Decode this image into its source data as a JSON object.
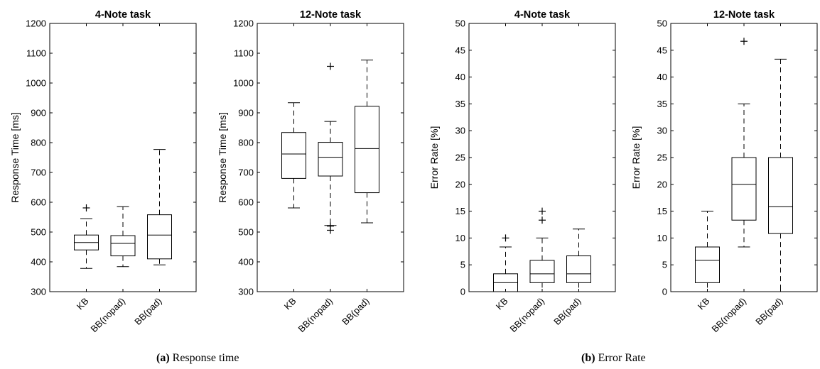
{
  "chart_data": [
    {
      "type": "box",
      "title": "4-Note task",
      "ylabel": "Response Time [ms]",
      "ylim": [
        300,
        1200
      ],
      "yticks": [
        300,
        400,
        500,
        600,
        700,
        800,
        900,
        1000,
        1100,
        1200
      ],
      "categories": [
        "KB",
        "BB(nopad)",
        "BB(pad)"
      ],
      "boxes": [
        {
          "whisker_low": 378,
          "q1": 440,
          "median": 465,
          "q3": 490,
          "whisker_high": 545,
          "outliers": [
            581
          ]
        },
        {
          "whisker_low": 384,
          "q1": 420,
          "median": 462,
          "q3": 488,
          "whisker_high": 585,
          "outliers": []
        },
        {
          "whisker_low": 390,
          "q1": 410,
          "median": 490,
          "q3": 558,
          "whisker_high": 777,
          "outliers": []
        }
      ]
    },
    {
      "type": "box",
      "title": "12-Note task",
      "ylabel": "Response Time [ms]",
      "ylim": [
        300,
        1200
      ],
      "yticks": [
        300,
        400,
        500,
        600,
        700,
        800,
        900,
        1000,
        1100,
        1200
      ],
      "categories": [
        "KB",
        "BB(nopad)",
        "BB(pad)"
      ],
      "boxes": [
        {
          "whisker_low": 581,
          "q1": 680,
          "median": 762,
          "q3": 834,
          "whisker_high": 934,
          "outliers": []
        },
        {
          "whisker_low": 522,
          "q1": 688,
          "median": 751,
          "q3": 801,
          "whisker_high": 871,
          "outliers": [
            1056,
            520,
            506
          ]
        },
        {
          "whisker_low": 531,
          "q1": 632,
          "median": 780,
          "q3": 922,
          "whisker_high": 1077,
          "outliers": []
        }
      ]
    },
    {
      "type": "box",
      "title": "4-Note task",
      "ylabel": "Error Rate [%]",
      "ylim": [
        0,
        50
      ],
      "yticks": [
        0,
        5,
        10,
        15,
        20,
        25,
        30,
        35,
        40,
        45,
        50
      ],
      "categories": [
        "KB",
        "BB(nopad)",
        "BB(pad)"
      ],
      "boxes": [
        {
          "whisker_low": 0,
          "q1": 0,
          "median": 1.67,
          "q3": 3.33,
          "whisker_high": 8.33,
          "outliers": [
            10
          ]
        },
        {
          "whisker_low": 0,
          "q1": 1.67,
          "median": 3.33,
          "q3": 5.83,
          "whisker_high": 10,
          "outliers": [
            13.33,
            15
          ]
        },
        {
          "whisker_low": 0,
          "q1": 1.67,
          "median": 3.33,
          "q3": 6.67,
          "whisker_high": 11.67,
          "outliers": []
        }
      ]
    },
    {
      "type": "box",
      "title": "12-Note task",
      "ylabel": "Error Rate [%]",
      "ylim": [
        0,
        50
      ],
      "yticks": [
        0,
        5,
        10,
        15,
        20,
        25,
        30,
        35,
        40,
        45,
        50
      ],
      "categories": [
        "KB",
        "BB(nopad)",
        "BB(pad)"
      ],
      "boxes": [
        {
          "whisker_low": 0,
          "q1": 1.67,
          "median": 5.83,
          "q3": 8.33,
          "whisker_high": 15,
          "outliers": []
        },
        {
          "whisker_low": 8.33,
          "q1": 13.33,
          "median": 20,
          "q3": 25,
          "whisker_high": 35,
          "outliers": [
            46.67
          ]
        },
        {
          "whisker_low": 0,
          "q1": 10.83,
          "median": 15.83,
          "q3": 25,
          "whisker_high": 43.33,
          "outliers": []
        }
      ]
    }
  ],
  "captions": {
    "a": {
      "label": "(a)",
      "text": " Response time"
    },
    "b": {
      "label": "(b)",
      "text": " Error Rate"
    }
  }
}
